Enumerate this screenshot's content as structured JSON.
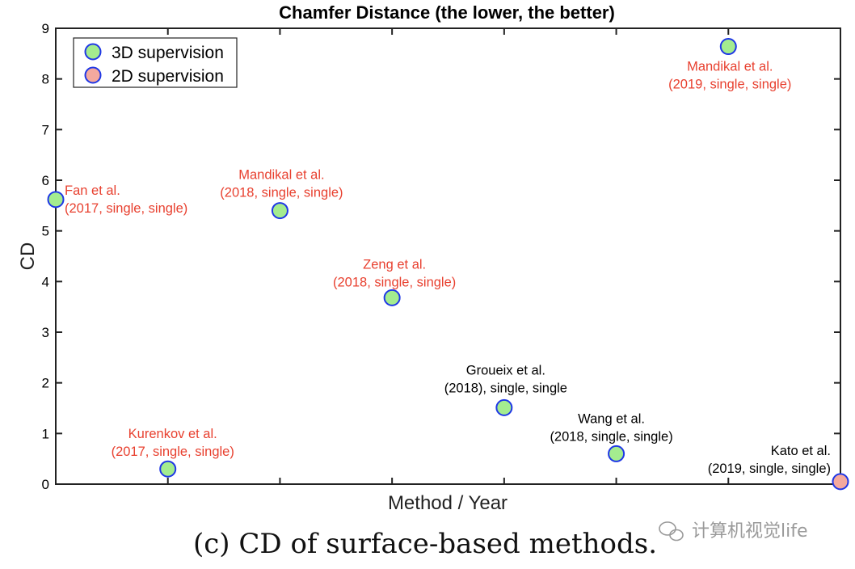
{
  "chart_data": {
    "type": "scatter",
    "title": "Chamfer Distance (the lower, the better)",
    "xlabel": "Method / Year",
    "ylabel": "CD",
    "ylim": [
      0,
      9
    ],
    "yticks": [
      "0",
      "1",
      "2",
      "3",
      "4",
      "5",
      "6",
      "7",
      "8",
      "9"
    ],
    "xlim": [
      1,
      8
    ],
    "grid": false,
    "legend": {
      "position": "top-left",
      "entries": [
        {
          "name": "3D supervision",
          "color": "#a4ec8f"
        },
        {
          "name": "2D supervision",
          "color": "#f4a99e"
        }
      ]
    },
    "points": [
      {
        "x": 1,
        "y": 5.62,
        "supervision": "3D supervision",
        "label_line1": "Fan et al.",
        "label_line2": "(2017, single, single)",
        "label_color": "#e8402f"
      },
      {
        "x": 2,
        "y": 0.3,
        "supervision": "3D supervision",
        "label_line1": "Kurenkov et al.",
        "label_line2": "(2017, single, single)",
        "label_color": "#e8402f"
      },
      {
        "x": 3,
        "y": 5.4,
        "supervision": "3D supervision",
        "label_line1": "Mandikal et al.",
        "label_line2": "(2018, single, single)",
        "label_color": "#e8402f"
      },
      {
        "x": 4,
        "y": 3.68,
        "supervision": "3D supervision",
        "label_line1": "Zeng et al.",
        "label_line2": "(2018, single, single)",
        "label_color": "#e8402f"
      },
      {
        "x": 5,
        "y": 1.51,
        "supervision": "3D supervision",
        "label_line1": "Groueix et al.",
        "label_line2": "(2018), single, single",
        "label_color": "#000000"
      },
      {
        "x": 6,
        "y": 0.6,
        "supervision": "3D supervision",
        "label_line1": "Wang et al.",
        "label_line2": "(2018, single, single)",
        "label_color": "#000000"
      },
      {
        "x": 7,
        "y": 8.64,
        "supervision": "3D supervision",
        "label_line1": "Mandikal et al.",
        "label_line2": "(2019, single, single)",
        "label_color": "#e8402f"
      },
      {
        "x": 8,
        "y": 0.05,
        "supervision": "2D supervision",
        "label_line1": "Kato et al.",
        "label_line2": "(2019, single, single)",
        "label_color": "#000000"
      }
    ]
  },
  "caption": "(c) CD of surface-based methods.",
  "watermark": "计算机视觉life",
  "colors": {
    "marker_edge": "#1f37e6",
    "green": "#a4ec8f",
    "salmon": "#f4a99e",
    "red_label": "#e8402f"
  }
}
